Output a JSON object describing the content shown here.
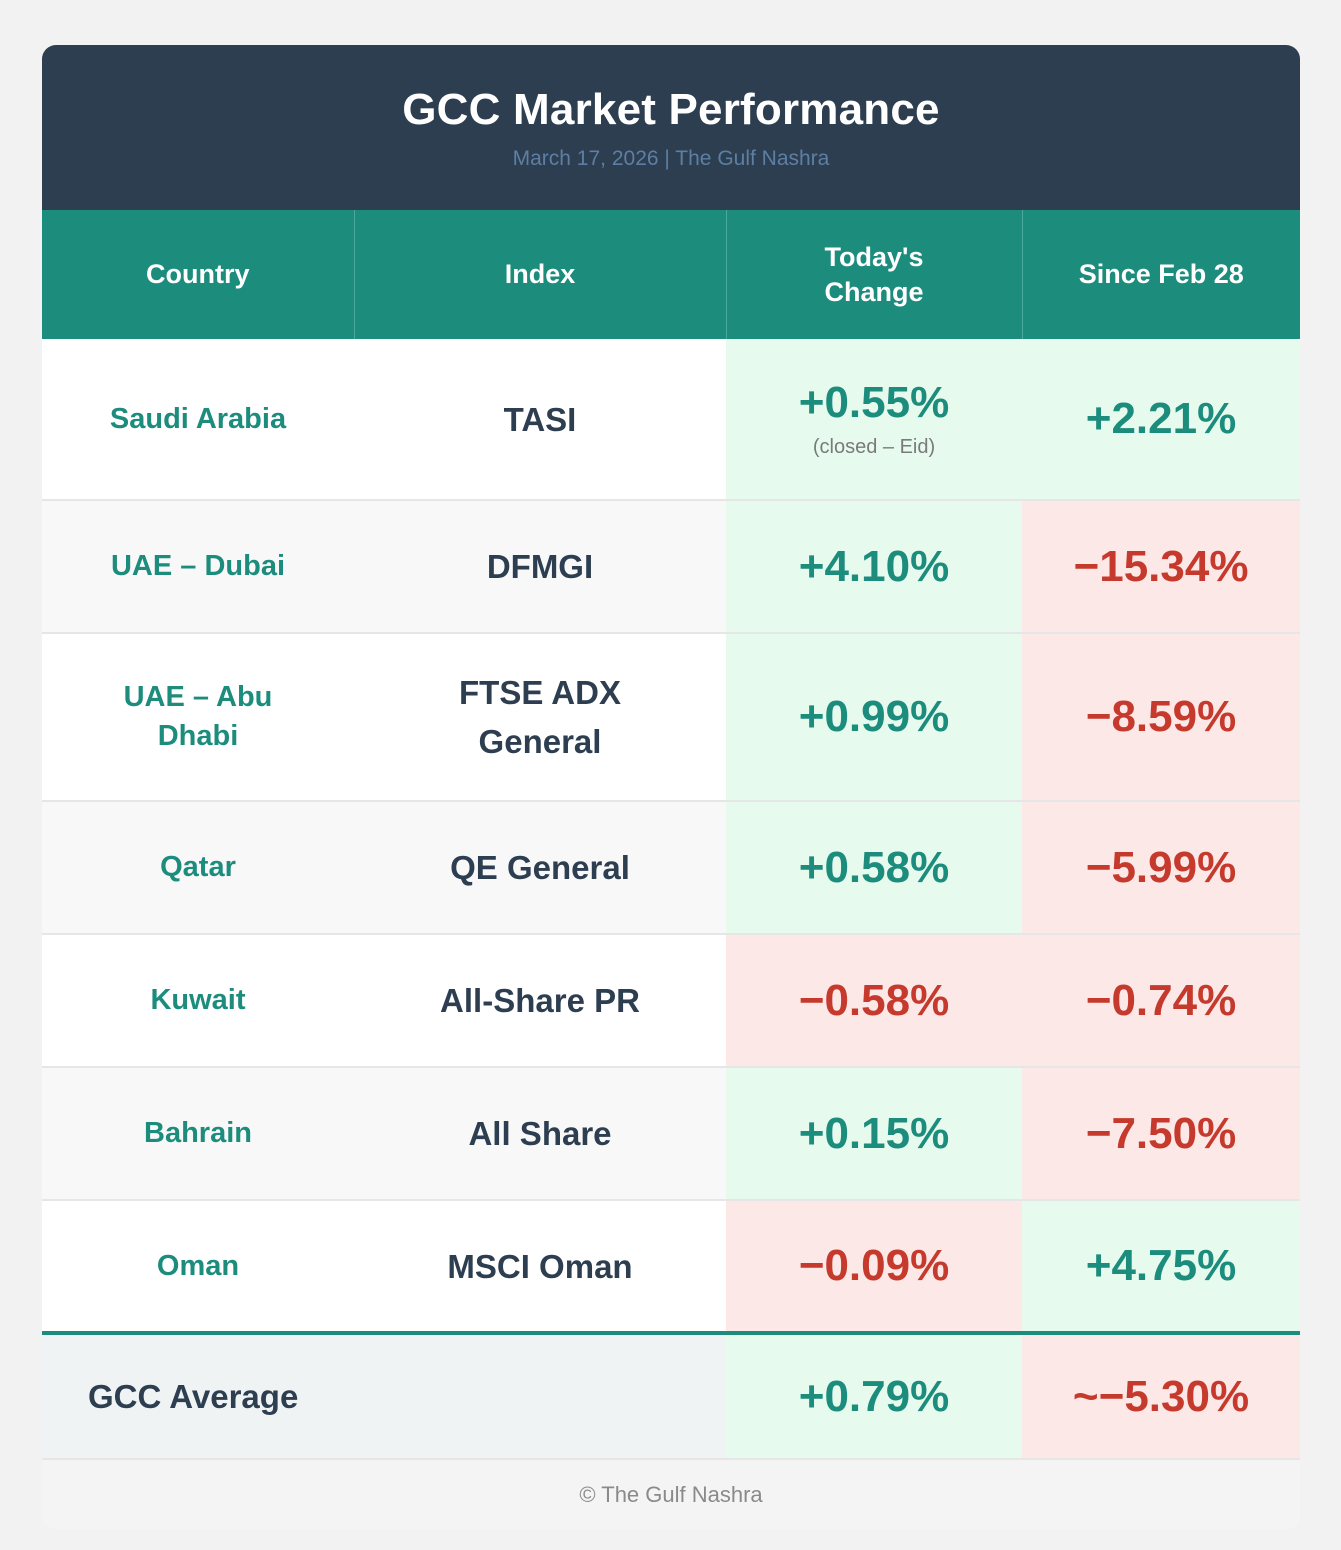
{
  "header": {
    "title": "GCC Market Performance",
    "subtitle": "March 17, 2026 | The Gulf Nashra"
  },
  "columns": [
    "Country",
    "Index",
    "Today's Change",
    "Since Feb 28"
  ],
  "rows": [
    {
      "country": "Saudi Arabia",
      "index": "TASI",
      "today": "+0.55%",
      "today_note": "(closed – Eid)",
      "since": "+2.21%"
    },
    {
      "country": "UAE – Dubai",
      "index": "DFMGI",
      "today": "+4.10%",
      "since": "−15.34%"
    },
    {
      "country": "UAE – Abu Dhabi",
      "index": "FTSE ADX General",
      "today": "+0.99%",
      "since": "−8.59%"
    },
    {
      "country": "Qatar",
      "index": "QE General",
      "today": "+0.58%",
      "since": "−5.99%"
    },
    {
      "country": "Kuwait",
      "index": "All-Share PR",
      "today": "−0.58%",
      "since": "−0.74%"
    },
    {
      "country": "Bahrain",
      "index": "All Share",
      "today": "+0.15%",
      "since": "−7.50%"
    },
    {
      "country": "Oman",
      "index": "MSCI Oman",
      "today": "−0.09%",
      "since": "+4.75%"
    }
  ],
  "average": {
    "label": "GCC Average",
    "today": "+0.79%",
    "since": "~−5.30%"
  },
  "footer": "© The Gulf Nashra",
  "colors": {
    "header_bg": "#2d3e50",
    "table_head_bg": "#1c8c7d",
    "positive_text": "#1c8c7d",
    "negative_text": "#c63a2e",
    "positive_bg": "#e6fbee",
    "negative_bg": "#fce8e6"
  }
}
